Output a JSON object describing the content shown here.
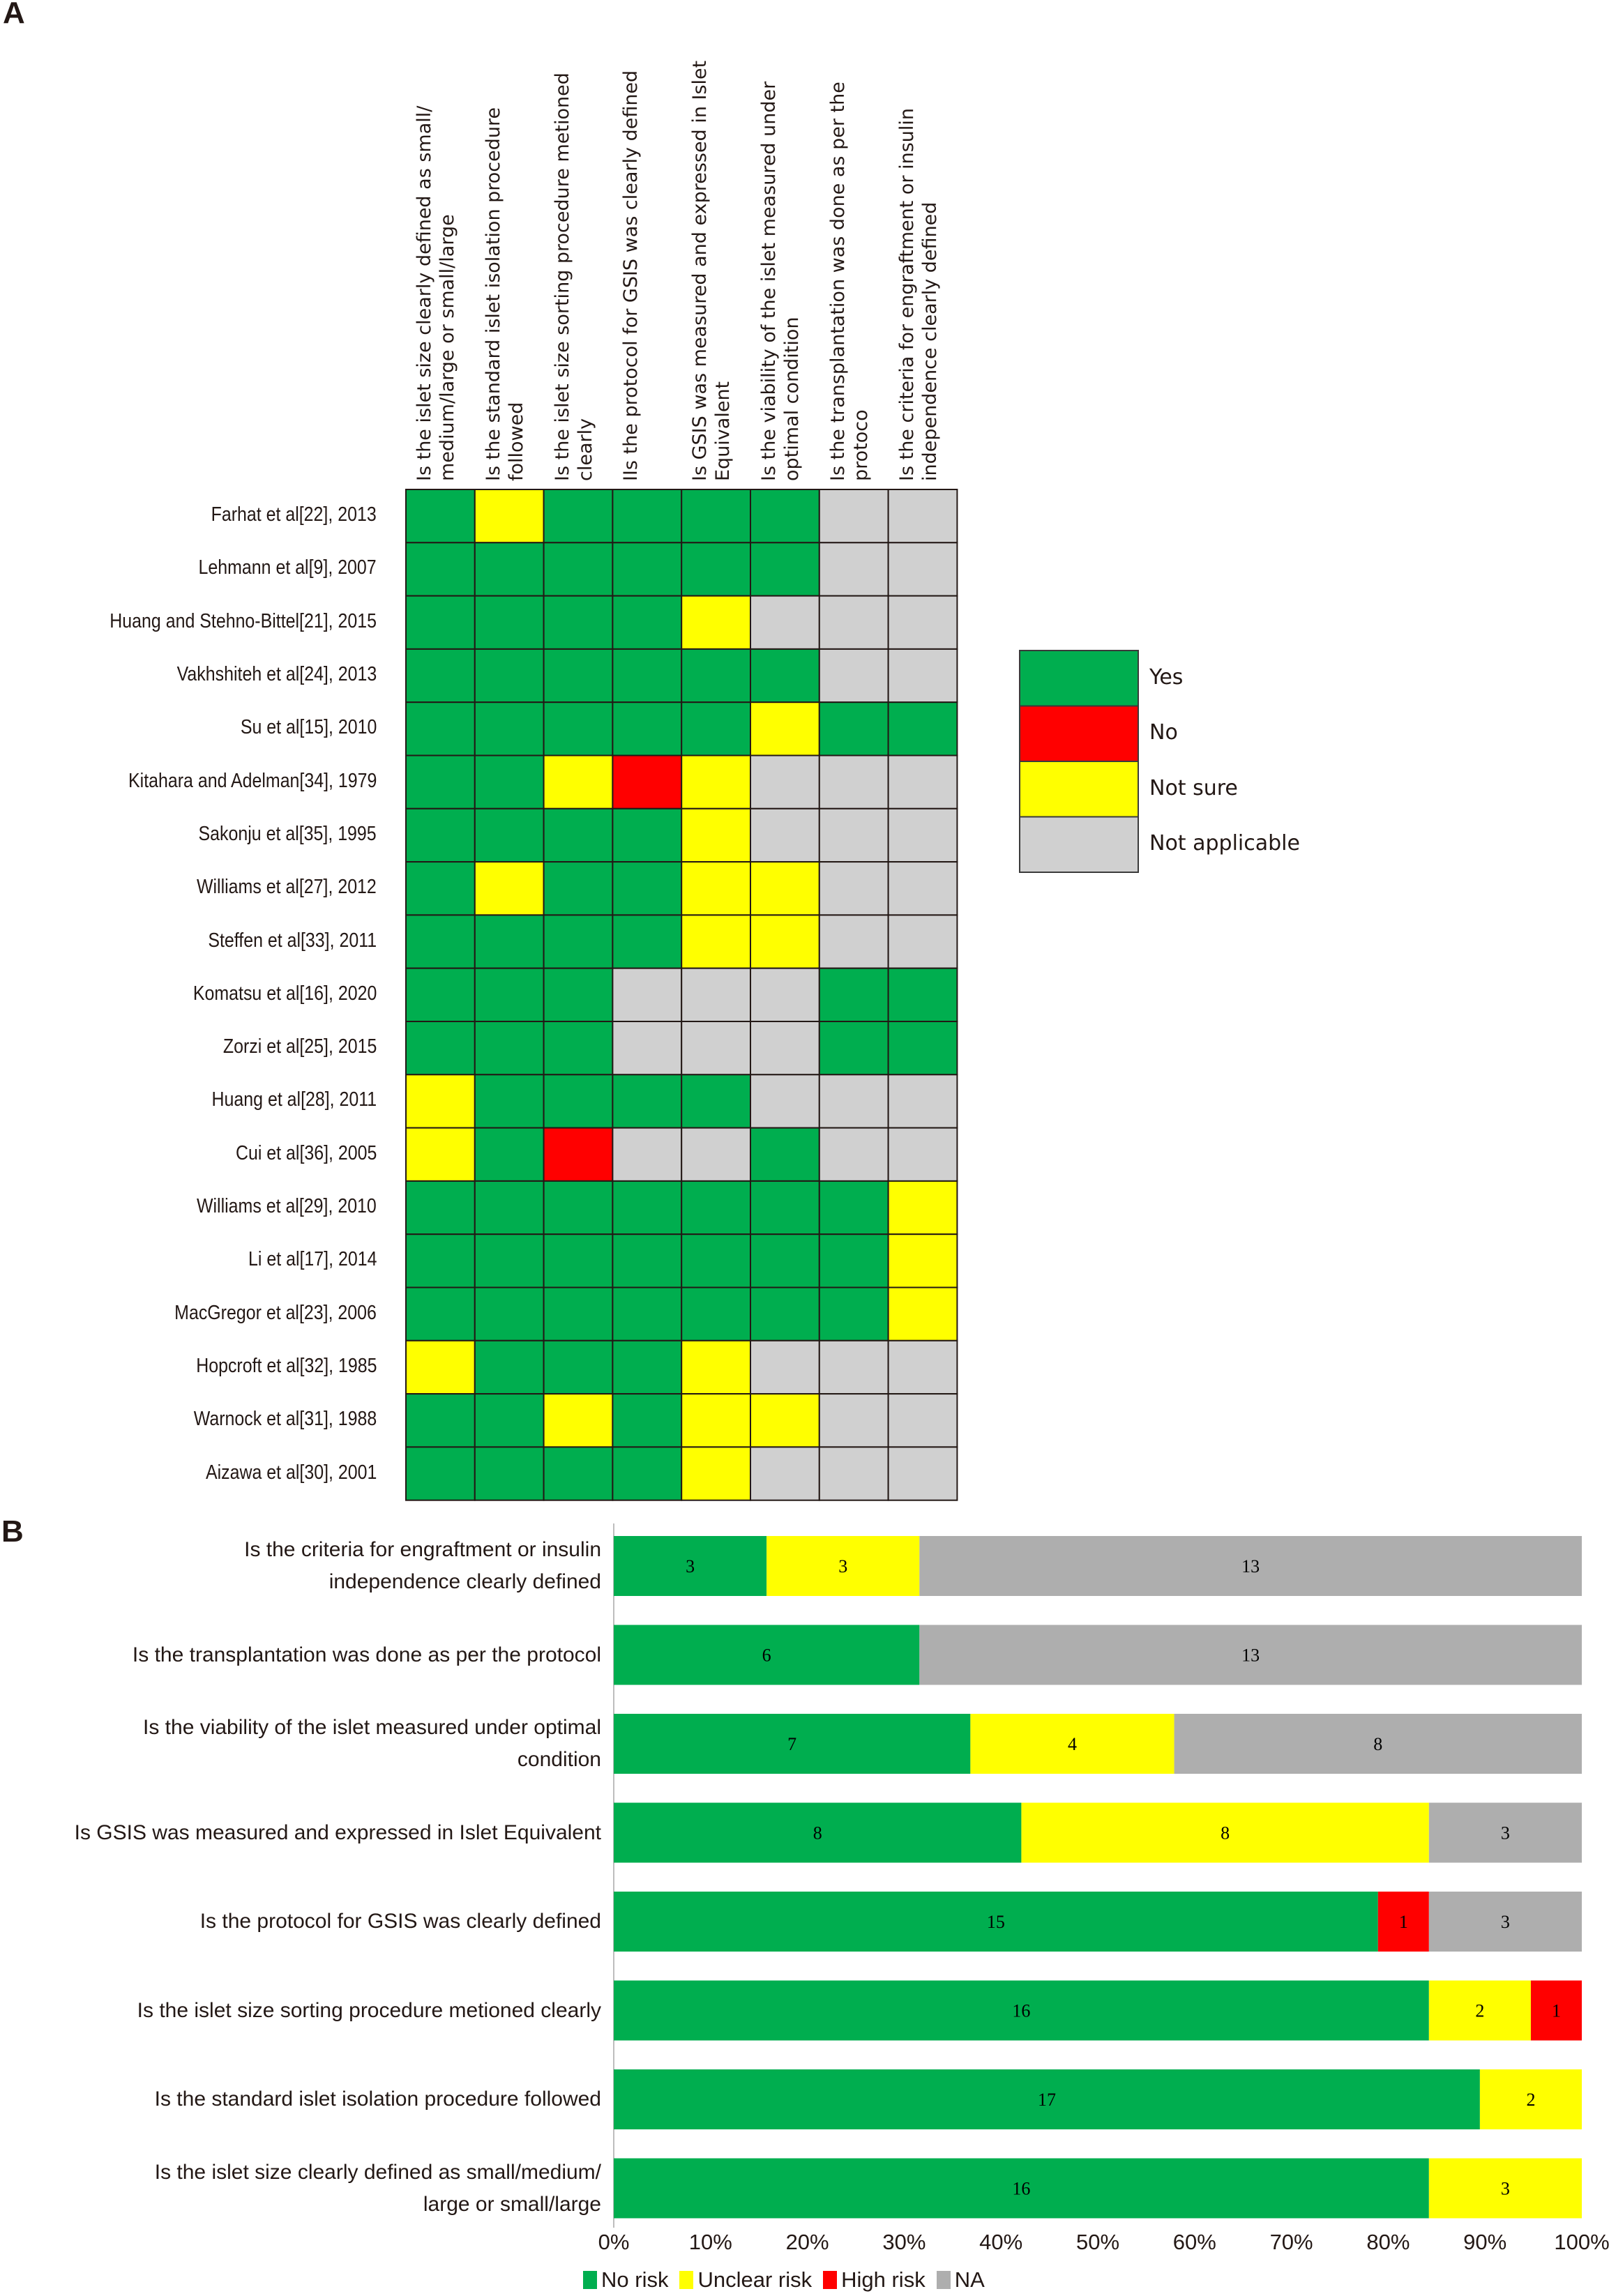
{
  "panels": {
    "a": "A",
    "b": "B"
  },
  "chart_data": [
    {
      "type": "heatmap",
      "title": "",
      "columns": [
        "Is the islet size clearly defined as small/ medium/large or small/large",
        "Is the standard islet isolation procedure followed",
        "Is the islet size sorting procedure metioned clearly",
        "IIs the protocol for GSIS was clearly defined",
        "Is GSIS was measured and expressed in Islet Equivalent",
        "Is the viability of the islet measured under optimal condition",
        "Is the transplantation was done as per the protoco",
        "Is the criteria for engraftment or insulin independence clearly defined"
      ],
      "columns_wrapped": [
        [
          "Is the islet size clearly defined as small/",
          "medium/large or small/large"
        ],
        [
          "Is the standard islet isolation procedure",
          "followed"
        ],
        [
          "Is the islet size sorting procedure metioned",
          "clearly"
        ],
        [
          "IIs the protocol for GSIS was clearly defined"
        ],
        [
          "Is GSIS was measured and expressed in Islet",
          "Equivalent"
        ],
        [
          "Is the viability of the islet measured under",
          "optimal condition"
        ],
        [
          "Is the transplantation was done as per the",
          "protoco"
        ],
        [
          "Is the criteria for engraftment or insulin",
          "independence clearly defined"
        ]
      ],
      "rows": [
        {
          "study": "Farhat et al[22], 2013",
          "values": [
            "Y",
            "S",
            "Y",
            "Y",
            "Y",
            "Y",
            "NA",
            "NA"
          ]
        },
        {
          "study": "Lehmann et al[9], 2007",
          "values": [
            "Y",
            "Y",
            "Y",
            "Y",
            "Y",
            "Y",
            "NA",
            "NA"
          ]
        },
        {
          "study": "Huang and Stehno-Bittel[21], 2015",
          "values": [
            "Y",
            "Y",
            "Y",
            "Y",
            "S",
            "NA",
            "NA",
            "NA"
          ]
        },
        {
          "study": "Vakhshiteh et al[24], 2013",
          "values": [
            "Y",
            "Y",
            "Y",
            "Y",
            "Y",
            "Y",
            "NA",
            "NA"
          ]
        },
        {
          "study": "Su et al[15], 2010",
          "values": [
            "Y",
            "Y",
            "Y",
            "Y",
            "Y",
            "S",
            "Y",
            "Y"
          ]
        },
        {
          "study": "Kitahara and Adelman[34], 1979",
          "values": [
            "Y",
            "Y",
            "S",
            "N",
            "S",
            "NA",
            "NA",
            "NA"
          ]
        },
        {
          "study": "Sakonju et al[35], 1995",
          "values": [
            "Y",
            "Y",
            "Y",
            "Y",
            "S",
            "NA",
            "NA",
            "NA"
          ]
        },
        {
          "study": "Williams et al[27], 2012",
          "values": [
            "Y",
            "S",
            "Y",
            "Y",
            "S",
            "S",
            "NA",
            "NA"
          ]
        },
        {
          "study": "Steffen et al[33], 2011",
          "values": [
            "Y",
            "Y",
            "Y",
            "Y",
            "S",
            "S",
            "NA",
            "NA"
          ]
        },
        {
          "study": "Komatsu et al[16], 2020",
          "values": [
            "Y",
            "Y",
            "Y",
            "NA",
            "NA",
            "NA",
            "Y",
            "Y"
          ]
        },
        {
          "study": "Zorzi et al[25], 2015",
          "values": [
            "Y",
            "Y",
            "Y",
            "NA",
            "NA",
            "NA",
            "Y",
            "Y"
          ]
        },
        {
          "study": "Huang et al[28], 2011",
          "values": [
            "S",
            "Y",
            "Y",
            "Y",
            "Y",
            "NA",
            "NA",
            "NA"
          ]
        },
        {
          "study": "Cui et al[36], 2005",
          "values": [
            "S",
            "Y",
            "N",
            "NA",
            "NA",
            "Y",
            "NA",
            "NA"
          ]
        },
        {
          "study": "Williams et al[29], 2010",
          "values": [
            "Y",
            "Y",
            "Y",
            "Y",
            "Y",
            "Y",
            "Y",
            "S"
          ]
        },
        {
          "study": "Li et al[17], 2014",
          "values": [
            "Y",
            "Y",
            "Y",
            "Y",
            "Y",
            "Y",
            "Y",
            "S"
          ]
        },
        {
          "study": "MacGregor et al[23], 2006",
          "values": [
            "Y",
            "Y",
            "Y",
            "Y",
            "Y",
            "Y",
            "Y",
            "S"
          ]
        },
        {
          "study": "Hopcroft et al[32], 1985",
          "values": [
            "S",
            "Y",
            "Y",
            "Y",
            "S",
            "NA",
            "NA",
            "NA"
          ]
        },
        {
          "study": "Warnock et al[31], 1988",
          "values": [
            "Y",
            "Y",
            "S",
            "Y",
            "S",
            "S",
            "NA",
            "NA"
          ]
        },
        {
          "study": "Aizawa et al[30], 2001",
          "values": [
            "Y",
            "Y",
            "Y",
            "Y",
            "S",
            "NA",
            "NA",
            "NA"
          ]
        }
      ],
      "legend": [
        {
          "key": "Y",
          "label": "Yes",
          "color": "#00AE4F"
        },
        {
          "key": "N",
          "label": "No",
          "color": "#FF0000"
        },
        {
          "key": "S",
          "label": "Not sure",
          "color": "#FFFF00"
        },
        {
          "key": "NA",
          "label": "Not applicable",
          "color": "#D0D0D0"
        }
      ],
      "legend_position": "right"
    },
    {
      "type": "bar",
      "orientation": "horizontal",
      "stacked": true,
      "normalized": true,
      "categories": [
        [
          "Is the criteria for engraftment or insulin",
          "independence clearly defined"
        ],
        [
          "Is the transplantation was done as per the protocol"
        ],
        [
          "Is the viability of the islet measured under optimal",
          "condition"
        ],
        [
          "Is GSIS was measured and expressed in Islet Equivalent"
        ],
        [
          "Is the protocol for GSIS was clearly defined"
        ],
        [
          "Is the islet size sorting procedure metioned clearly"
        ],
        [
          "Is the standard islet isolation procedure followed"
        ],
        [
          "Is the islet size clearly defined as small/medium/",
          "large or small/large"
        ]
      ],
      "series": [
        {
          "name": "No risk",
          "color": "#00AE4F",
          "values": [
            3,
            6,
            7,
            8,
            15,
            16,
            17,
            16
          ]
        },
        {
          "name": "Unclear risk",
          "color": "#FFFF00",
          "values": [
            3,
            0,
            4,
            8,
            0,
            2,
            2,
            3
          ]
        },
        {
          "name": "High risk",
          "color": "#FF0000",
          "values": [
            0,
            0,
            0,
            0,
            1,
            1,
            0,
            0
          ]
        },
        {
          "name": "NA",
          "color": "#AEAEAE",
          "values": [
            13,
            13,
            8,
            3,
            3,
            0,
            0,
            0
          ]
        }
      ],
      "xlabel": "",
      "ylabel": "",
      "xlim": [
        0,
        100
      ],
      "xticks": [
        "0%",
        "10%",
        "20%",
        "30%",
        "40%",
        "50%",
        "60%",
        "70%",
        "80%",
        "90%",
        "100%"
      ],
      "legend_position": "bottom",
      "grid": false
    }
  ]
}
